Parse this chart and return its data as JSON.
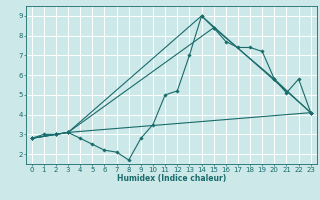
{
  "xlabel": "Humidex (Indice chaleur)",
  "ylabel": "",
  "xlim": [
    -0.5,
    23.5
  ],
  "ylim": [
    1.5,
    9.5
  ],
  "xticks": [
    0,
    1,
    2,
    3,
    4,
    5,
    6,
    7,
    8,
    9,
    10,
    11,
    12,
    13,
    14,
    15,
    16,
    17,
    18,
    19,
    20,
    21,
    22,
    23
  ],
  "yticks": [
    2,
    3,
    4,
    5,
    6,
    7,
    8,
    9
  ],
  "bg_color": "#cce8e8",
  "grid_color": "#ffffff",
  "line_color": "#1a6b6b",
  "lines": [
    {
      "x": [
        0,
        1,
        2,
        3,
        4,
        5,
        6,
        7,
        8,
        9,
        10,
        11,
        12,
        13,
        14,
        15,
        16,
        17,
        18,
        19,
        20,
        21,
        22,
        23
      ],
      "y": [
        2.8,
        3.0,
        3.0,
        3.1,
        2.8,
        2.5,
        2.2,
        2.1,
        1.7,
        2.8,
        3.5,
        5.0,
        5.2,
        7.0,
        9.0,
        8.4,
        7.7,
        7.4,
        7.4,
        7.2,
        5.8,
        5.1,
        5.8,
        4.1
      ]
    },
    {
      "x": [
        0,
        2,
        3,
        14,
        23
      ],
      "y": [
        2.8,
        3.0,
        3.1,
        9.0,
        4.1
      ]
    },
    {
      "x": [
        0,
        2,
        3,
        15,
        20,
        23
      ],
      "y": [
        2.8,
        3.0,
        3.1,
        8.4,
        5.8,
        4.1
      ]
    },
    {
      "x": [
        0,
        2,
        3,
        23
      ],
      "y": [
        2.8,
        3.0,
        3.1,
        4.1
      ]
    }
  ]
}
